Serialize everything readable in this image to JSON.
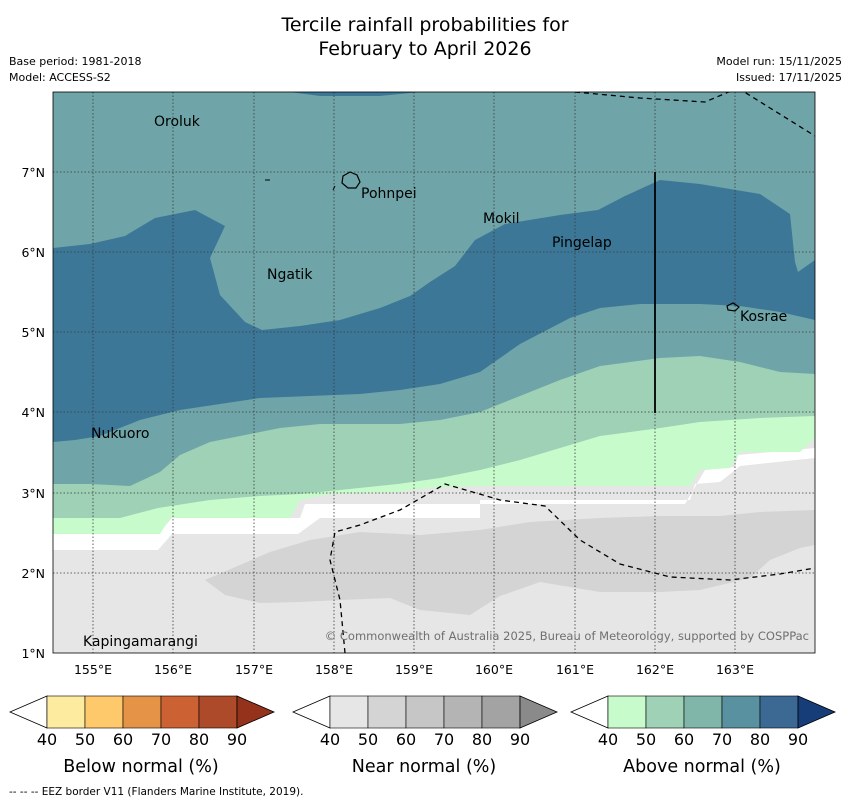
{
  "title": {
    "line1": "Tercile rainfall probabilities for",
    "line2": "February to April 2026"
  },
  "meta": {
    "base_period": "Base period: 1981-2018",
    "model": "Model: ACCESS-S2",
    "model_run": "Model run: 15/11/2025",
    "issued": "Issued: 17/11/2025"
  },
  "map": {
    "lon_labels": [
      "155°E",
      "156°E",
      "157°E",
      "158°E",
      "159°E",
      "160°E",
      "161°E",
      "162°E",
      "163°E"
    ],
    "lat_labels": [
      "7°N",
      "6°N",
      "5°N",
      "4°N",
      "3°N",
      "2°N",
      "1°N"
    ],
    "places": [
      "Oroluk",
      "Pohnpei",
      "Mokil",
      "Pingelap",
      "Ngatik",
      "Kosrae",
      "Nukuoro",
      "Kapingamarangi"
    ],
    "copyright": "© Commonwealth of Australia 2025, Bureau of Meteorology, supported by COSPPac"
  },
  "colorbars": [
    {
      "title": "Below normal (%)",
      "ticks": [
        "40",
        "50",
        "60",
        "70",
        "80",
        "90"
      ],
      "colors": [
        "#ffffff",
        "#fdeba0",
        "#fdc96a",
        "#e59347",
        "#cc6133",
        "#ad4a2a",
        "#94321b"
      ]
    },
    {
      "title": "Near normal (%)",
      "ticks": [
        "40",
        "50",
        "60",
        "70",
        "80",
        "90"
      ],
      "colors": [
        "#ffffff",
        "#e6e6e6",
        "#d4d4d4",
        "#c6c6c6",
        "#b4b4b4",
        "#a3a3a3",
        "#8a8a8a"
      ]
    },
    {
      "title": "Above normal (%)",
      "ticks": [
        "40",
        "50",
        "60",
        "70",
        "80",
        "90"
      ],
      "colors": [
        "#ffffff",
        "#c8fbcb",
        "#9ed1b6",
        "#80b5aa",
        "#5a91a1",
        "#3b6994",
        "#163d78"
      ]
    }
  ],
  "footer": "--  --  -- EEZ border V11 (Flanders Marine Institute, 2019)."
}
